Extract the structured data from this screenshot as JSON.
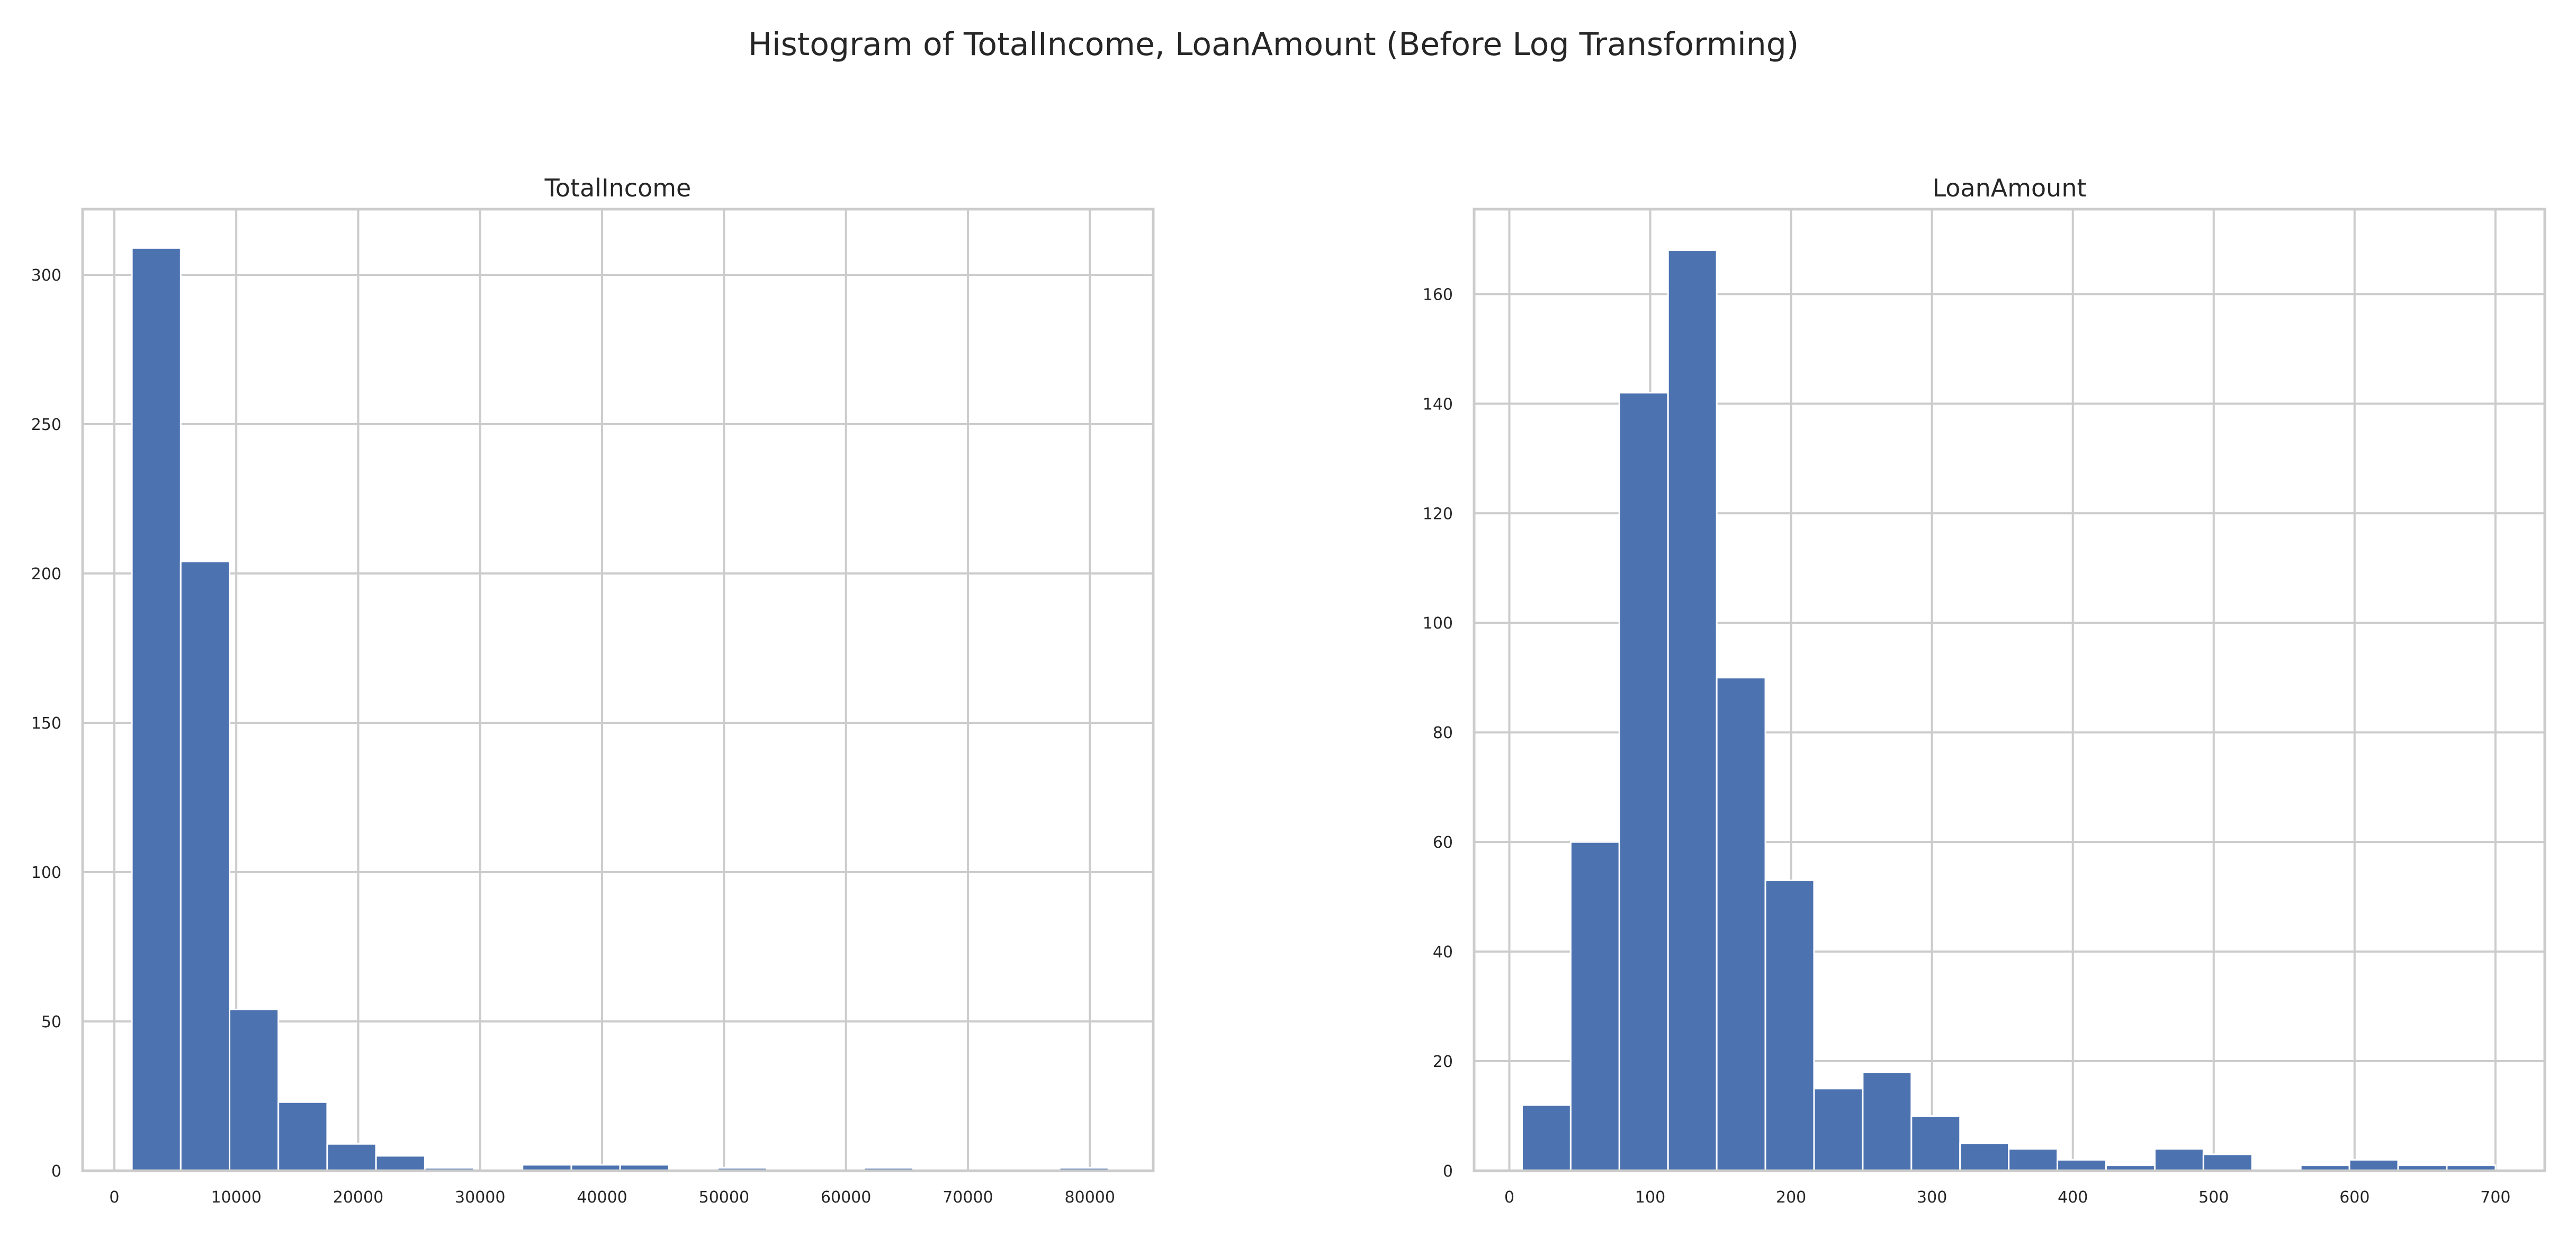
{
  "title": "Histogram of TotalIncome, LoanAmount (Before Log Transforming)",
  "colors": {
    "bar": "#4c72b0",
    "grid": "#cccccc",
    "background": "#ffffff"
  },
  "chart_data": [
    {
      "type": "bar",
      "title": "TotalIncome",
      "xlabel": "",
      "ylabel": "",
      "grid": true,
      "xlim": [
        -2600,
        85200
      ],
      "ylim": [
        0,
        322
      ],
      "xticks": [
        0,
        10000,
        20000,
        30000,
        40000,
        50000,
        60000,
        70000,
        80000
      ],
      "xtick_labels": [
        "0",
        "10000",
        "20000",
        "30000",
        "40000",
        "50000",
        "60000",
        "70000",
        "80000"
      ],
      "yticks": [
        0,
        50,
        100,
        150,
        200,
        250,
        300
      ],
      "ytick_labels": [
        "0",
        "50",
        "100",
        "150",
        "200",
        "250",
        "300"
      ],
      "bin_edges": [
        1442,
        5446,
        9450,
        13454,
        17458,
        21462,
        25466,
        29470,
        33474,
        37478,
        41482,
        45486,
        49490,
        53494,
        57498,
        61502,
        65506,
        69510,
        73514,
        77518,
        81522
      ],
      "values": [
        309,
        204,
        54,
        23,
        9,
        5,
        1,
        0,
        2,
        2,
        2,
        0,
        1,
        0,
        0,
        1,
        0,
        0,
        0,
        1
      ]
    },
    {
      "type": "bar",
      "title": "LoanAmount",
      "xlabel": "",
      "ylabel": "",
      "grid": true,
      "xlim": [
        -25,
        735
      ],
      "ylim": [
        0,
        175.5
      ],
      "xticks": [
        0,
        100,
        200,
        300,
        400,
        500,
        600,
        700
      ],
      "xtick_labels": [
        "0",
        "100",
        "200",
        "300",
        "400",
        "500",
        "600",
        "700"
      ],
      "yticks": [
        0,
        20,
        40,
        60,
        80,
        100,
        120,
        140,
        160
      ],
      "ytick_labels": [
        "0",
        "20",
        "40",
        "60",
        "80",
        "100",
        "120",
        "140",
        "160"
      ],
      "bin_edges": [
        9,
        43.55,
        78.1,
        112.65,
        147.2,
        181.75,
        216.3,
        250.85,
        285.4,
        319.95,
        354.5,
        389.05,
        423.6,
        458.15,
        492.7,
        527.25,
        561.8,
        596.35,
        630.9,
        665.45,
        700
      ],
      "values": [
        12,
        60,
        142,
        168,
        90,
        53,
        15,
        18,
        10,
        5,
        4,
        2,
        1,
        4,
        3,
        0,
        1,
        2,
        1,
        1
      ]
    }
  ]
}
